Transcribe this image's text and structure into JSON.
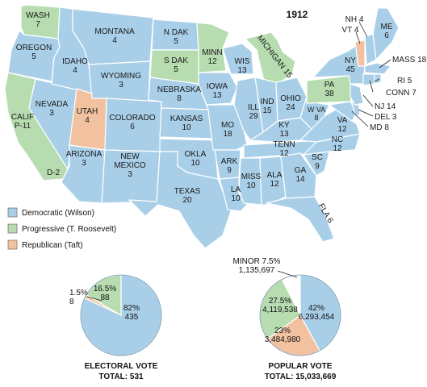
{
  "title": "1912",
  "colors": {
    "democratic": "#a9cfe8",
    "progressive": "#b6dcb0",
    "republican": "#f2c2a0",
    "border": "#ffffff"
  },
  "legend": [
    {
      "party": "democratic",
      "label": "Democratic (Wilson)"
    },
    {
      "party": "progressive",
      "label": "Progressive (T. Roosevelt)"
    },
    {
      "party": "republican",
      "label": "Republican (Taft)"
    }
  ],
  "states": [
    {
      "id": "wa",
      "name": "WASH",
      "votes": "7",
      "party": "progressive"
    },
    {
      "id": "or",
      "name": "OREGON",
      "votes": "5",
      "party": "democratic"
    },
    {
      "id": "ca",
      "name": "CALIF",
      "votes": "P-11",
      "party": "progressive",
      "note": "D-2"
    },
    {
      "id": "id",
      "name": "IDAHO",
      "votes": "4",
      "party": "democratic"
    },
    {
      "id": "nv",
      "name": "NEVADA",
      "votes": "3",
      "party": "democratic"
    },
    {
      "id": "mt",
      "name": "MONTANA",
      "votes": "4",
      "party": "democratic"
    },
    {
      "id": "wy",
      "name": "WYOMING",
      "votes": "3",
      "party": "democratic"
    },
    {
      "id": "ut",
      "name": "UTAH",
      "votes": "4",
      "party": "republican"
    },
    {
      "id": "az",
      "name": "ARIZONA",
      "votes": "3",
      "party": "democratic"
    },
    {
      "id": "co",
      "name": "COLORADO",
      "votes": "6",
      "party": "democratic"
    },
    {
      "id": "nm",
      "name": "NEW MEXICO",
      "votes": "3",
      "party": "democratic"
    },
    {
      "id": "nd",
      "name": "N DAK",
      "votes": "5",
      "party": "democratic"
    },
    {
      "id": "sd",
      "name": "S DAK",
      "votes": "5",
      "party": "progressive"
    },
    {
      "id": "ne",
      "name": "NEBRASKA",
      "votes": "8",
      "party": "democratic"
    },
    {
      "id": "ks",
      "name": "KANSAS",
      "votes": "10",
      "party": "democratic"
    },
    {
      "id": "ok",
      "name": "OKLA",
      "votes": "10",
      "party": "democratic"
    },
    {
      "id": "tx",
      "name": "TEXAS",
      "votes": "20",
      "party": "democratic"
    },
    {
      "id": "mn",
      "name": "MINN",
      "votes": "12",
      "party": "progressive"
    },
    {
      "id": "ia",
      "name": "IOWA",
      "votes": "13",
      "party": "democratic"
    },
    {
      "id": "mo",
      "name": "MO",
      "votes": "18",
      "party": "democratic"
    },
    {
      "id": "ar",
      "name": "ARK",
      "votes": "9",
      "party": "democratic"
    },
    {
      "id": "la",
      "name": "LA",
      "votes": "10",
      "party": "democratic"
    },
    {
      "id": "wi",
      "name": "WIS",
      "votes": "13",
      "party": "democratic"
    },
    {
      "id": "il",
      "name": "ILL",
      "votes": "29",
      "party": "democratic"
    },
    {
      "id": "mi",
      "name": "MICHIGAN",
      "votes": "15",
      "party": "progressive"
    },
    {
      "id": "in",
      "name": "IND",
      "votes": "15",
      "party": "democratic"
    },
    {
      "id": "oh",
      "name": "OHIO",
      "votes": "24",
      "party": "democratic"
    },
    {
      "id": "ky",
      "name": "KY",
      "votes": "13",
      "party": "democratic"
    },
    {
      "id": "tn",
      "name": "TENN",
      "votes": "12",
      "party": "democratic"
    },
    {
      "id": "ms",
      "name": "MISS",
      "votes": "10",
      "party": "democratic"
    },
    {
      "id": "al",
      "name": "ALA",
      "votes": "12",
      "party": "democratic"
    },
    {
      "id": "ga",
      "name": "GA",
      "votes": "14",
      "party": "democratic"
    },
    {
      "id": "fl",
      "name": "FLA",
      "votes": "6",
      "party": "democratic"
    },
    {
      "id": "sc",
      "name": "SC",
      "votes": "9",
      "party": "democratic"
    },
    {
      "id": "nc",
      "name": "NC",
      "votes": "12",
      "party": "democratic"
    },
    {
      "id": "va",
      "name": "VA",
      "votes": "12",
      "party": "democratic"
    },
    {
      "id": "wv",
      "name": "W VA",
      "votes": "8",
      "party": "democratic"
    },
    {
      "id": "pa",
      "name": "PA",
      "votes": "38",
      "party": "progressive"
    },
    {
      "id": "ny",
      "name": "NY",
      "votes": "45",
      "party": "democratic"
    },
    {
      "id": "me",
      "name": "ME",
      "votes": "6",
      "party": "democratic"
    },
    {
      "id": "vt",
      "name": "VT",
      "votes": "4",
      "party": "republican"
    },
    {
      "id": "nh",
      "name": "NH",
      "votes": "4",
      "party": "democratic"
    },
    {
      "id": "ma",
      "name": "MASS",
      "votes": "18",
      "party": "democratic"
    },
    {
      "id": "ri",
      "name": "RI",
      "votes": "5",
      "party": "democratic"
    },
    {
      "id": "ct",
      "name": "CONN",
      "votes": "7",
      "party": "democratic"
    },
    {
      "id": "nj",
      "name": "NJ",
      "votes": "14",
      "party": "democratic"
    },
    {
      "id": "de",
      "name": "DEL",
      "votes": "3",
      "party": "democratic"
    },
    {
      "id": "md",
      "name": "MD",
      "votes": "8",
      "party": "democratic"
    }
  ],
  "electoral_vote": {
    "title": "ELECTORAL VOTE",
    "total": "TOTAL: 531",
    "slices": [
      {
        "party": "democratic",
        "percent": "82%",
        "count": "435",
        "fraction": 0.82
      },
      {
        "party": "republican",
        "percent": "1.5%",
        "count": "8",
        "fraction": 0.015
      },
      {
        "party": "progressive",
        "percent": "16.5%",
        "count": "88",
        "fraction": 0.165
      }
    ]
  },
  "popular_vote": {
    "title": "POPULAR VOTE",
    "total": "TOTAL: 15,033,669",
    "slices": [
      {
        "party": "democratic",
        "percent": "42%",
        "count": "6,293,454",
        "fraction": 0.42
      },
      {
        "party": "republican",
        "percent": "23%",
        "count": "3,484,980",
        "fraction": 0.23
      },
      {
        "party": "progressive",
        "percent": "27.5%",
        "count": "4,119,538",
        "fraction": 0.275
      },
      {
        "party": "minor",
        "percent": "MINOR 7.5%",
        "count": "1,135,697",
        "fraction": 0.075
      }
    ]
  }
}
